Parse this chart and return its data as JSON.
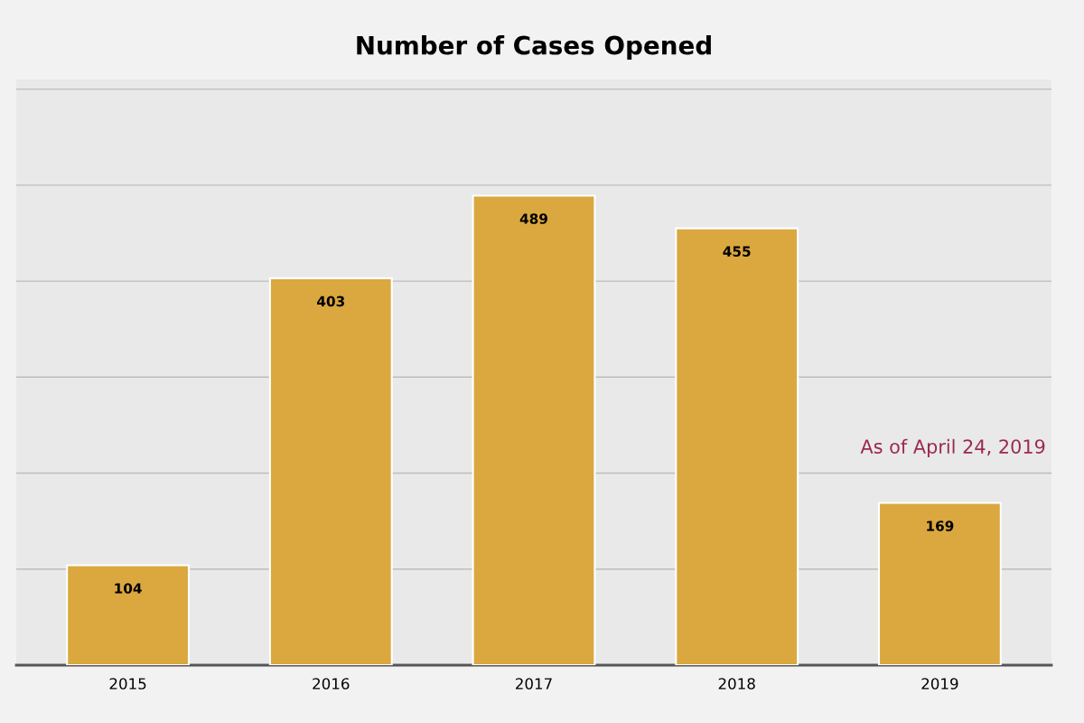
{
  "chart_data": {
    "type": "bar",
    "title": "Number of Cases Opened",
    "categories": [
      "2015",
      "2016",
      "2017",
      "2018",
      "2019"
    ],
    "values": [
      104,
      403,
      489,
      455,
      169
    ],
    "color": "#daa83f",
    "data_labels": true,
    "grid": "y",
    "legend": false,
    "ylim": [
      0,
      610
    ],
    "yticks": [
      {
        "value": 100,
        "label": null
      },
      {
        "value": 200,
        "label": null
      },
      {
        "value": 300,
        "label": null
      },
      {
        "value": 400,
        "label": null
      },
      {
        "value": 500,
        "label": null
      },
      {
        "value": 600,
        "label": null
      }
    ],
    "tick_labels": "x",
    "annotations": [
      "As of April 24, 2019"
    ]
  }
}
